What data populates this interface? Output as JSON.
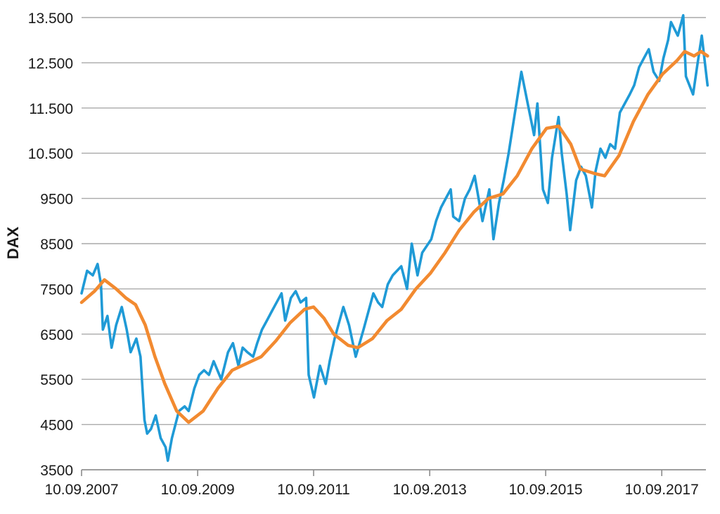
{
  "chart_data": {
    "type": "line",
    "title": "",
    "xlabel": "",
    "ylabel": "DAX",
    "x_range": [
      "2007-09-10",
      "2018-06-15"
    ],
    "ylim": [
      3500,
      13500
    ],
    "grid": true,
    "y_ticks": [
      {
        "value": 3500,
        "label": "3500"
      },
      {
        "value": 4500,
        "label": "4500"
      },
      {
        "value": 5500,
        "label": "5500"
      },
      {
        "value": 6500,
        "label": "6500"
      },
      {
        "value": 7500,
        "label": "7500"
      },
      {
        "value": 8500,
        "label": "8500"
      },
      {
        "value": 9500,
        "label": "9500"
      },
      {
        "value": 10500,
        "label": "10.500"
      },
      {
        "value": 11500,
        "label": "11.500"
      },
      {
        "value": 12500,
        "label": "12.500"
      },
      {
        "value": 13500,
        "label": "13.500"
      }
    ],
    "x_ticks": [
      {
        "date": "2007-09-10",
        "label": "10.09.2007"
      },
      {
        "date": "2009-09-10",
        "label": "10.09.2009"
      },
      {
        "date": "2011-09-10",
        "label": "10.09.2011"
      },
      {
        "date": "2013-09-10",
        "label": "10.09.2013"
      },
      {
        "date": "2015-09-10",
        "label": "10.09.2015"
      },
      {
        "date": "2017-09-10",
        "label": "10.09.2017"
      }
    ],
    "series": [
      {
        "color": "#1f9ad6",
        "points": [
          [
            "2007-09-10",
            7400
          ],
          [
            "2007-10-15",
            7900
          ],
          [
            "2007-11-20",
            7800
          ],
          [
            "2007-12-20",
            8050
          ],
          [
            "2008-01-10",
            7600
          ],
          [
            "2008-01-22",
            6600
          ],
          [
            "2008-02-20",
            6900
          ],
          [
            "2008-03-17",
            6200
          ],
          [
            "2008-04-15",
            6700
          ],
          [
            "2008-05-20",
            7100
          ],
          [
            "2008-06-20",
            6600
          ],
          [
            "2008-07-15",
            6100
          ],
          [
            "2008-08-20",
            6400
          ],
          [
            "2008-09-15",
            6000
          ],
          [
            "2008-10-10",
            4600
          ],
          [
            "2008-10-27",
            4300
          ],
          [
            "2008-11-20",
            4400
          ],
          [
            "2008-12-20",
            4700
          ],
          [
            "2009-01-20",
            4200
          ],
          [
            "2009-02-20",
            4000
          ],
          [
            "2009-03-06",
            3700
          ],
          [
            "2009-04-01",
            4200
          ],
          [
            "2009-05-15",
            4800
          ],
          [
            "2009-06-20",
            4900
          ],
          [
            "2009-07-15",
            4800
          ],
          [
            "2009-08-20",
            5300
          ],
          [
            "2009-09-20",
            5600
          ],
          [
            "2009-10-20",
            5700
          ],
          [
            "2009-11-20",
            5600
          ],
          [
            "2009-12-20",
            5900
          ],
          [
            "2010-02-05",
            5500
          ],
          [
            "2010-03-20",
            6100
          ],
          [
            "2010-04-20",
            6300
          ],
          [
            "2010-05-25",
            5800
          ],
          [
            "2010-06-20",
            6200
          ],
          [
            "2010-07-20",
            6100
          ],
          [
            "2010-08-25",
            6000
          ],
          [
            "2010-09-20",
            6300
          ],
          [
            "2010-10-20",
            6600
          ],
          [
            "2010-11-20",
            6800
          ],
          [
            "2010-12-20",
            7000
          ],
          [
            "2011-01-20",
            7200
          ],
          [
            "2011-02-20",
            7400
          ],
          [
            "2011-03-15",
            6800
          ],
          [
            "2011-04-20",
            7300
          ],
          [
            "2011-05-20",
            7450
          ],
          [
            "2011-06-20",
            7200
          ],
          [
            "2011-07-25",
            7300
          ],
          [
            "2011-08-10",
            5600
          ],
          [
            "2011-09-12",
            5100
          ],
          [
            "2011-10-20",
            5800
          ],
          [
            "2011-11-25",
            5400
          ],
          [
            "2011-12-20",
            5900
          ],
          [
            "2012-01-20",
            6400
          ],
          [
            "2012-03-15",
            7100
          ],
          [
            "2012-04-20",
            6700
          ],
          [
            "2012-06-01",
            6000
          ],
          [
            "2012-07-20",
            6600
          ],
          [
            "2012-09-20",
            7400
          ],
          [
            "2012-10-20",
            7200
          ],
          [
            "2012-11-15",
            7100
          ],
          [
            "2012-12-20",
            7600
          ],
          [
            "2013-01-20",
            7800
          ],
          [
            "2013-03-15",
            8000
          ],
          [
            "2013-04-20",
            7500
          ],
          [
            "2013-05-20",
            8500
          ],
          [
            "2013-06-25",
            7800
          ],
          [
            "2013-07-25",
            8300
          ],
          [
            "2013-09-20",
            8600
          ],
          [
            "2013-10-20",
            9000
          ],
          [
            "2013-11-20",
            9300
          ],
          [
            "2013-12-20",
            9500
          ],
          [
            "2014-01-20",
            9700
          ],
          [
            "2014-02-05",
            9100
          ],
          [
            "2014-03-14",
            9000
          ],
          [
            "2014-04-20",
            9500
          ],
          [
            "2014-05-20",
            9700
          ],
          [
            "2014-06-20",
            10000
          ],
          [
            "2014-08-08",
            9000
          ],
          [
            "2014-09-20",
            9700
          ],
          [
            "2014-10-16",
            8600
          ],
          [
            "2014-11-20",
            9400
          ],
          [
            "2014-12-20",
            9900
          ],
          [
            "2015-01-20",
            10500
          ],
          [
            "2015-02-20",
            11200
          ],
          [
            "2015-04-10",
            12300
          ],
          [
            "2015-05-20",
            11600
          ],
          [
            "2015-06-29",
            10900
          ],
          [
            "2015-07-20",
            11600
          ],
          [
            "2015-08-24",
            9700
          ],
          [
            "2015-09-24",
            9400
          ],
          [
            "2015-10-20",
            10400
          ],
          [
            "2015-11-30",
            11300
          ],
          [
            "2015-12-20",
            10500
          ],
          [
            "2016-01-20",
            9600
          ],
          [
            "2016-02-11",
            8800
          ],
          [
            "2016-03-20",
            9900
          ],
          [
            "2016-04-20",
            10200
          ],
          [
            "2016-05-20",
            10000
          ],
          [
            "2016-06-27",
            9300
          ],
          [
            "2016-07-20",
            10100
          ],
          [
            "2016-08-20",
            10600
          ],
          [
            "2016-09-20",
            10400
          ],
          [
            "2016-10-20",
            10700
          ],
          [
            "2016-11-20",
            10600
          ],
          [
            "2016-12-20",
            11400
          ],
          [
            "2017-01-20",
            11600
          ],
          [
            "2017-02-20",
            11800
          ],
          [
            "2017-03-20",
            12000
          ],
          [
            "2017-04-20",
            12400
          ],
          [
            "2017-05-20",
            12600
          ],
          [
            "2017-06-20",
            12800
          ],
          [
            "2017-07-20",
            12300
          ],
          [
            "2017-08-25",
            12100
          ],
          [
            "2017-09-20",
            12600
          ],
          [
            "2017-10-20",
            13000
          ],
          [
            "2017-11-07",
            13400
          ],
          [
            "2017-12-20",
            13100
          ],
          [
            "2018-01-23",
            13550
          ],
          [
            "2018-02-09",
            12200
          ],
          [
            "2018-03-26",
            11800
          ],
          [
            "2018-04-20",
            12400
          ],
          [
            "2018-05-20",
            13100
          ],
          [
            "2018-06-15",
            12300
          ],
          [
            "2018-06-25",
            12000
          ]
        ]
      },
      {
        "color": "#f28a30",
        "points": [
          [
            "2007-09-10",
            7200
          ],
          [
            "2007-12-01",
            7450
          ],
          [
            "2008-02-01",
            7700
          ],
          [
            "2008-04-15",
            7500
          ],
          [
            "2008-06-15",
            7300
          ],
          [
            "2008-08-15",
            7150
          ],
          [
            "2008-10-15",
            6700
          ],
          [
            "2008-12-15",
            6000
          ],
          [
            "2009-02-15",
            5400
          ],
          [
            "2009-05-01",
            4800
          ],
          [
            "2009-07-15",
            4550
          ],
          [
            "2009-10-15",
            4800
          ],
          [
            "2010-01-15",
            5300
          ],
          [
            "2010-04-15",
            5700
          ],
          [
            "2010-07-15",
            5850
          ],
          [
            "2010-10-15",
            6000
          ],
          [
            "2011-01-15",
            6350
          ],
          [
            "2011-04-15",
            6750
          ],
          [
            "2011-07-15",
            7050
          ],
          [
            "2011-09-10",
            7100
          ],
          [
            "2011-11-15",
            6850
          ],
          [
            "2012-01-15",
            6500
          ],
          [
            "2012-04-15",
            6250
          ],
          [
            "2012-06-15",
            6200
          ],
          [
            "2012-09-15",
            6400
          ],
          [
            "2012-12-15",
            6800
          ],
          [
            "2013-03-15",
            7050
          ],
          [
            "2013-06-15",
            7500
          ],
          [
            "2013-09-15",
            7850
          ],
          [
            "2013-12-15",
            8300
          ],
          [
            "2014-03-15",
            8800
          ],
          [
            "2014-06-15",
            9200
          ],
          [
            "2014-09-15",
            9500
          ],
          [
            "2014-12-15",
            9600
          ],
          [
            "2015-03-15",
            10000
          ],
          [
            "2015-06-15",
            10600
          ],
          [
            "2015-09-15",
            11050
          ],
          [
            "2015-12-01",
            11100
          ],
          [
            "2016-02-15",
            10700
          ],
          [
            "2016-04-15",
            10150
          ],
          [
            "2016-07-15",
            10050
          ],
          [
            "2016-09-15",
            10000
          ],
          [
            "2016-12-15",
            10450
          ],
          [
            "2017-03-15",
            11200
          ],
          [
            "2017-06-15",
            11800
          ],
          [
            "2017-09-15",
            12250
          ],
          [
            "2017-12-15",
            12550
          ],
          [
            "2018-02-01",
            12750
          ],
          [
            "2018-04-01",
            12650
          ],
          [
            "2018-05-15",
            12750
          ],
          [
            "2018-06-25",
            12650
          ]
        ]
      }
    ]
  }
}
